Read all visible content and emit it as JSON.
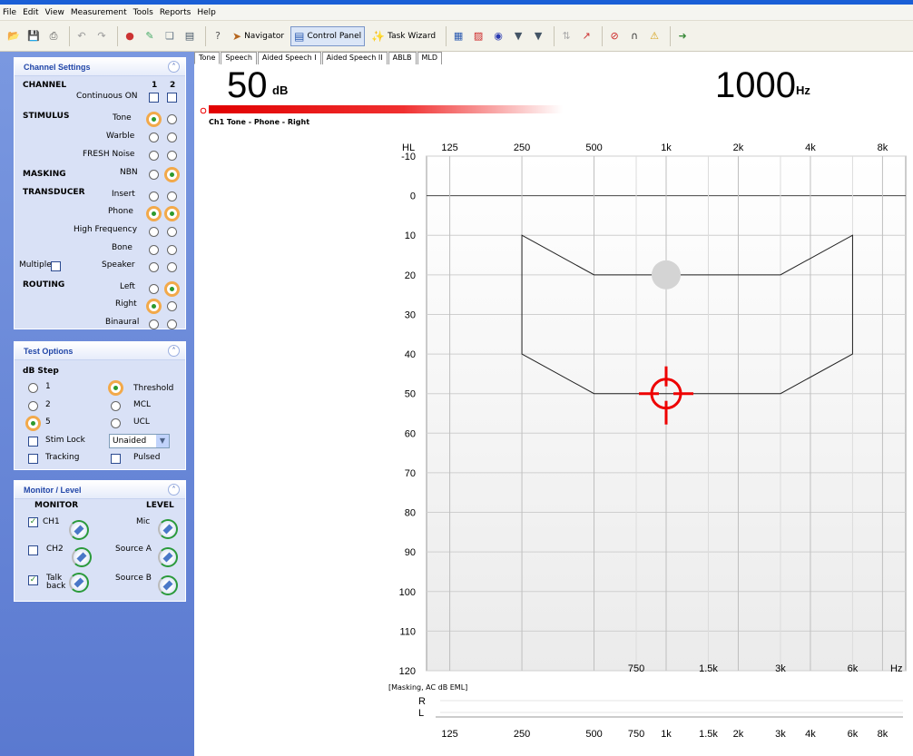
{
  "menu": [
    "File",
    "Edit",
    "View",
    "Measurement",
    "Tools",
    "Reports",
    "Help"
  ],
  "toolbar": {
    "navigator_label": "Navigator",
    "control_panel_label": "Control Panel",
    "task_wizard_label": "Task Wizard"
  },
  "channel_settings": {
    "title": "Channel Settings",
    "channel_label": "CHANNEL",
    "ch1": "1",
    "ch2": "2",
    "continuous_on": "Continuous ON",
    "stimulus": "STIMULUS",
    "tone": "Tone",
    "warble": "Warble",
    "fresh_noise": "FRESH Noise",
    "masking": "MASKING",
    "nbn": "NBN",
    "transducer": "TRANSDUCER",
    "insert": "Insert",
    "phone": "Phone",
    "high_frequency": "High Frequency",
    "bone": "Bone",
    "multiple": "Multiple",
    "speaker": "Speaker",
    "routing": "ROUTING",
    "left": "Left",
    "right": "Right",
    "binaural": "Binaural"
  },
  "test_options": {
    "title": "Test Options",
    "db_step": "dB Step",
    "step1": "1",
    "step2": "2",
    "step5": "5",
    "threshold": "Threshold",
    "mcl": "MCL",
    "ucl": "UCL",
    "stim_lock": "Stim Lock",
    "tracking": "Tracking",
    "pulsed": "Pulsed",
    "aided_select": "Unaided"
  },
  "monitor": {
    "title": "Monitor / Level",
    "monitor_label": "MONITOR",
    "level_label": "LEVEL",
    "ch1": "CH1",
    "ch2": "CH2",
    "talk": "Talk",
    "back": "back",
    "mic": "Mic",
    "source_a": "Source A",
    "source_b": "Source B"
  },
  "tabs": [
    "Tone",
    "Speech",
    "Aided Speech I",
    "Aided Speech II",
    "ABLB",
    "MLD"
  ],
  "readout": {
    "db_value": "50",
    "db_unit": "dB",
    "hz_value": "1000",
    "hz_unit": "Hz",
    "channel_label": "Ch1 Tone - Phone - Right"
  },
  "chart_data": {
    "type": "scatter",
    "title": "",
    "y_axis_label": "HL",
    "x_unit": "Hz",
    "top_ticks": [
      "125",
      "250",
      "500",
      "1k",
      "2k",
      "4k",
      "8k"
    ],
    "bottom_ticks": [
      "750",
      "1.5k",
      "3k",
      "6k"
    ],
    "y_ticks": [
      -10,
      0,
      10,
      20,
      30,
      40,
      50,
      60,
      70,
      80,
      90,
      100,
      110,
      120
    ],
    "ylim": [
      -10,
      120
    ],
    "y_inverted": true,
    "speech_banana": [
      [
        250,
        10
      ],
      [
        500,
        20
      ],
      [
        3000,
        20
      ],
      [
        6000,
        10
      ],
      [
        6000,
        40
      ],
      [
        3000,
        50
      ],
      [
        500,
        50
      ],
      [
        250,
        40
      ]
    ],
    "points": [
      {
        "freq": 1000,
        "db": 20,
        "marker": "gray-circle"
      },
      {
        "freq": 1000,
        "db": 50,
        "marker": "red-crosshair"
      }
    ],
    "masking_label": "[Masking, AC dB EML]",
    "masking_rows": [
      "R",
      "L"
    ],
    "masking_ticks": [
      "125",
      "250",
      "500",
      "750",
      "1k",
      "1.5k",
      "2k",
      "3k",
      "4k",
      "6k",
      "8k"
    ]
  }
}
